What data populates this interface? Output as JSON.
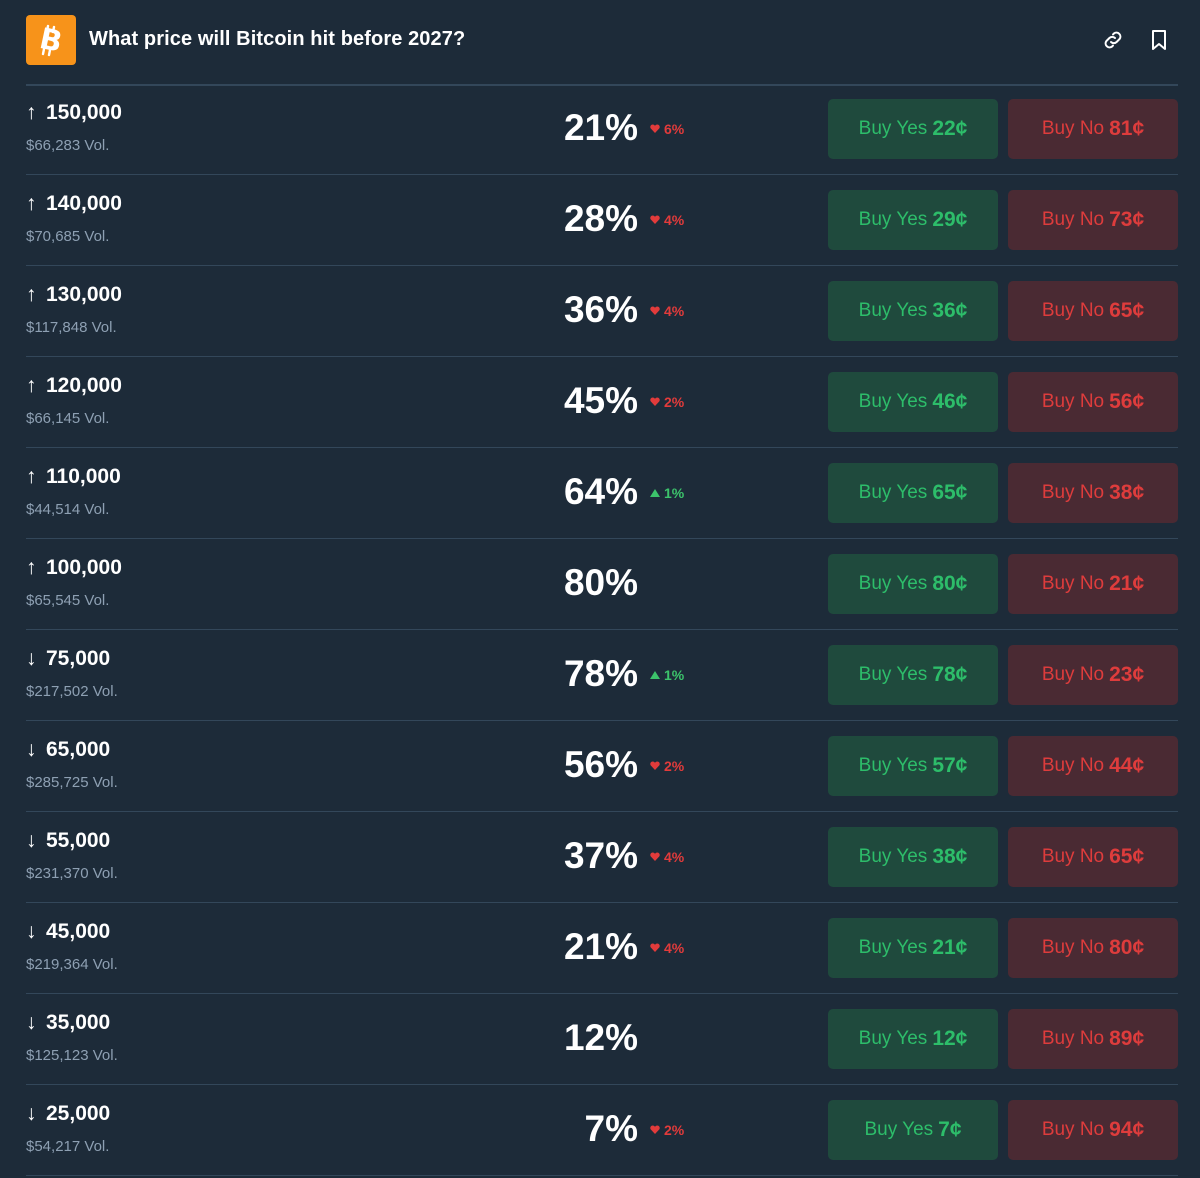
{
  "header": {
    "title": "What price will Bitcoin hit before 2027?",
    "logo_icon": "bitcoin-logo",
    "logo_color": "#f7931a",
    "actions": [
      "link-icon",
      "bookmark-icon"
    ]
  },
  "colors": {
    "background": "#1d2b39",
    "yes_text": "#2dbd6a",
    "yes_bg": "#1f4a3d",
    "no_text": "#de3c3c",
    "no_bg": "#4a2a33",
    "up": "#3cc36b",
    "down": "#e23b3b"
  },
  "rows": [
    {
      "direction": "up",
      "arrow": "↑",
      "price": "150,000",
      "volume": "$66,283 Vol.",
      "probability": "21%",
      "change": {
        "dir": "down",
        "value": "6%"
      },
      "yes_label": "Buy Yes",
      "yes_price": "22¢",
      "no_label": "Buy No",
      "no_price": "81¢"
    },
    {
      "direction": "up",
      "arrow": "↑",
      "price": "140,000",
      "volume": "$70,685 Vol.",
      "probability": "28%",
      "change": {
        "dir": "down",
        "value": "4%"
      },
      "yes_label": "Buy Yes",
      "yes_price": "29¢",
      "no_label": "Buy No",
      "no_price": "73¢"
    },
    {
      "direction": "up",
      "arrow": "↑",
      "price": "130,000",
      "volume": "$117,848 Vol.",
      "probability": "36%",
      "change": {
        "dir": "down",
        "value": "4%"
      },
      "yes_label": "Buy Yes",
      "yes_price": "36¢",
      "no_label": "Buy No",
      "no_price": "65¢"
    },
    {
      "direction": "up",
      "arrow": "↑",
      "price": "120,000",
      "volume": "$66,145 Vol.",
      "probability": "45%",
      "change": {
        "dir": "down",
        "value": "2%"
      },
      "yes_label": "Buy Yes",
      "yes_price": "46¢",
      "no_label": "Buy No",
      "no_price": "56¢"
    },
    {
      "direction": "up",
      "arrow": "↑",
      "price": "110,000",
      "volume": "$44,514 Vol.",
      "probability": "64%",
      "change": {
        "dir": "up",
        "value": "1%"
      },
      "yes_label": "Buy Yes",
      "yes_price": "65¢",
      "no_label": "Buy No",
      "no_price": "38¢"
    },
    {
      "direction": "up",
      "arrow": "↑",
      "price": "100,000",
      "volume": "$65,545 Vol.",
      "probability": "80%",
      "change": null,
      "yes_label": "Buy Yes",
      "yes_price": "80¢",
      "no_label": "Buy No",
      "no_price": "21¢"
    },
    {
      "direction": "down",
      "arrow": "↓",
      "price": "75,000",
      "volume": "$217,502 Vol.",
      "probability": "78%",
      "change": {
        "dir": "up",
        "value": "1%"
      },
      "yes_label": "Buy Yes",
      "yes_price": "78¢",
      "no_label": "Buy No",
      "no_price": "23¢"
    },
    {
      "direction": "down",
      "arrow": "↓",
      "price": "65,000",
      "volume": "$285,725 Vol.",
      "probability": "56%",
      "change": {
        "dir": "down",
        "value": "2%"
      },
      "yes_label": "Buy Yes",
      "yes_price": "57¢",
      "no_label": "Buy No",
      "no_price": "44¢"
    },
    {
      "direction": "down",
      "arrow": "↓",
      "price": "55,000",
      "volume": "$231,370 Vol.",
      "probability": "37%",
      "change": {
        "dir": "down",
        "value": "4%"
      },
      "yes_label": "Buy Yes",
      "yes_price": "38¢",
      "no_label": "Buy No",
      "no_price": "65¢"
    },
    {
      "direction": "down",
      "arrow": "↓",
      "price": "45,000",
      "volume": "$219,364 Vol.",
      "probability": "21%",
      "change": {
        "dir": "down",
        "value": "4%"
      },
      "yes_label": "Buy Yes",
      "yes_price": "21¢",
      "no_label": "Buy No",
      "no_price": "80¢"
    },
    {
      "direction": "down",
      "arrow": "↓",
      "price": "35,000",
      "volume": "$125,123 Vol.",
      "probability": "12%",
      "change": null,
      "yes_label": "Buy Yes",
      "yes_price": "12¢",
      "no_label": "Buy No",
      "no_price": "89¢"
    },
    {
      "direction": "down",
      "arrow": "↓",
      "price": "25,000",
      "volume": "$54,217 Vol.",
      "probability": "7%",
      "change": {
        "dir": "down",
        "value": "2%"
      },
      "yes_label": "Buy Yes",
      "yes_price": "7¢",
      "no_label": "Buy No",
      "no_price": "94¢"
    }
  ]
}
